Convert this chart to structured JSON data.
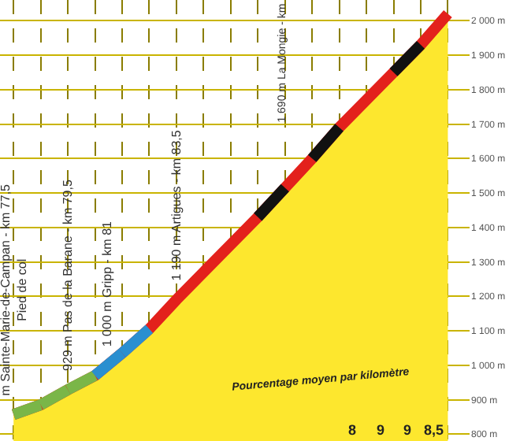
{
  "chart_data": {
    "type": "area",
    "categories": [
      null,
      null,
      null,
      null,
      null,
      null,
      null,
      null,
      null,
      null,
      null,
      null,
      null,
      null,
      null,
      null,
      null
    ],
    "series": [
      {
        "color": "#e3211c",
        "values": [
          857,
          885,
          929,
          970,
          1035,
          1105,
          1190,
          1270,
          1350,
          1430,
          1515,
          1600,
          1690,
          1770,
          1850,
          1930,
          2020
        ],
        "colors": [
          "#7ab648",
          "#7ab648",
          "#7ab648",
          "#7ab648",
          "#2a8fd0",
          "#2a8fd0",
          "#e3211c",
          "#e3211c",
          "#e3211c",
          "#e3211c",
          "#111111",
          "#e3211c",
          "#111111",
          "#e3211c",
          "#e3211c",
          "#111111",
          "#e3211c"
        ]
      }
    ],
    "ylim": [
      780,
      2060
    ],
    "yticks": [
      {
        "value": 800,
        "label": "800 m"
      },
      {
        "value": 900,
        "label": "900 m"
      },
      {
        "value": 1000,
        "label": "1 000 m"
      },
      {
        "value": 1100,
        "label": "1 100 m"
      },
      {
        "value": 1200,
        "label": "1 200 m"
      },
      {
        "value": 1300,
        "label": "1 300 m"
      },
      {
        "value": 1400,
        "label": "1 400 m"
      },
      {
        "value": 1500,
        "label": "1 500 m"
      },
      {
        "value": 1600,
        "label": "1 600 m"
      },
      {
        "value": 1700,
        "label": "1 700 m"
      },
      {
        "value": 1800,
        "label": "1 800 m"
      },
      {
        "value": 1900,
        "label": "1 900 m"
      },
      {
        "value": 2000,
        "label": "2 000 m"
      }
    ],
    "tick_labels": "y",
    "grid": true,
    "annotations": [
      {
        "text": "m Sainte-Marie-de-Campan - km 77,5\nPied de col",
        "y": 857
      },
      {
        "text": "929 m Pas de la Barane - km 79,5",
        "y": 929
      },
      {
        "text": "1 000 m Gripp - km 81",
        "y": 1000
      },
      {
        "text": "1 190 m Artigues - km 83,5",
        "y": 1190
      },
      "1 690 m La Mongie - km",
      "Pourcentage moyen par kilomètre",
      "8",
      "9",
      "9",
      "8,5"
    ]
  }
}
